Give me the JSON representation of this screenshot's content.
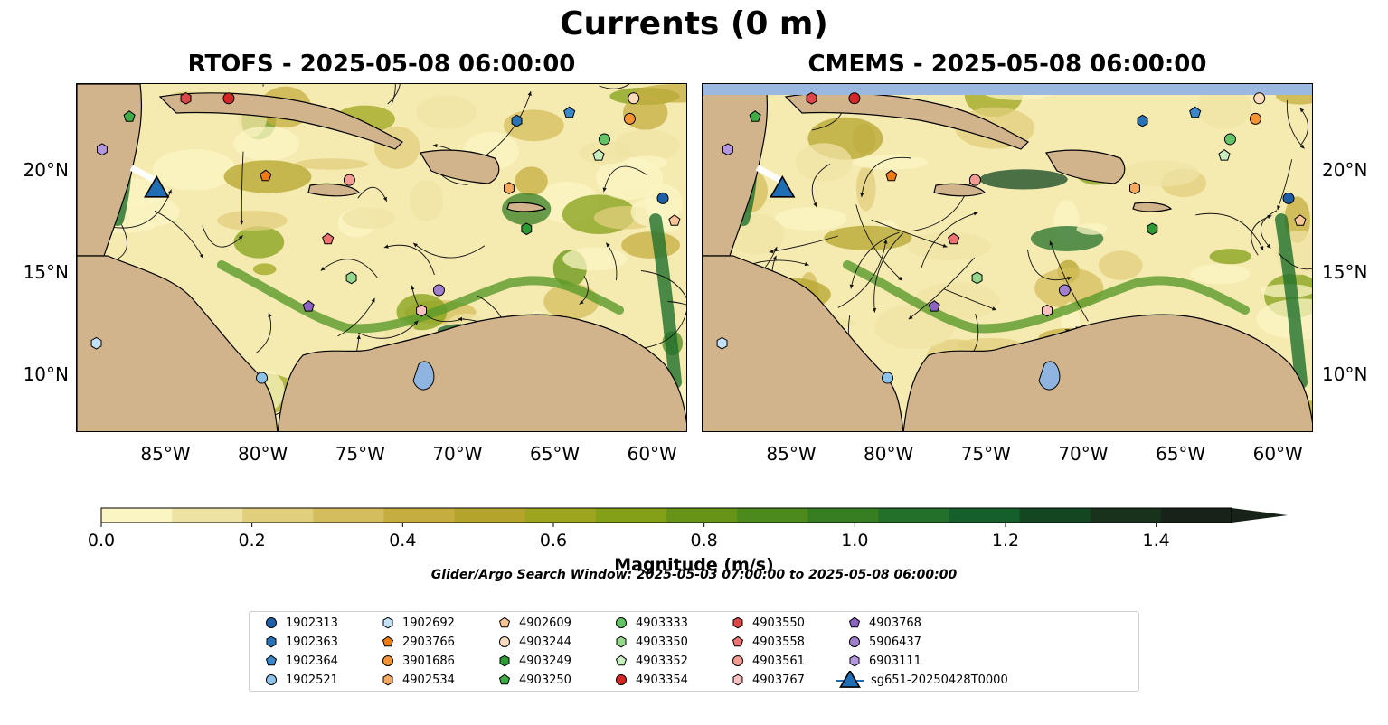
{
  "title": "Currents (0 m)",
  "panels": [
    {
      "title": "RTOFS - 2025-05-08 06:00:00"
    },
    {
      "title": "CMEMS - 2025-05-08 06:00:00"
    }
  ],
  "axes": {
    "lon_ticks": [
      "85°W",
      "80°W",
      "75°W",
      "70°W",
      "65°W",
      "60°W"
    ],
    "lon_values": [
      -85,
      -80,
      -75,
      -70,
      -65,
      -60
    ],
    "lat_ticks": [
      "20°N",
      "15°N",
      "10°N"
    ],
    "lat_values": [
      20,
      15,
      10
    ],
    "lon_range": [
      -89.6,
      -58.2
    ],
    "lat_range": [
      7.2,
      24.3
    ]
  },
  "colorbar": {
    "label": "Magnitude (m/s)",
    "ticks": [
      "0.0",
      "0.2",
      "0.4",
      "0.6",
      "0.8",
      "1.0",
      "1.2",
      "1.4"
    ],
    "tick_values": [
      0,
      0.2,
      0.4,
      0.6,
      0.8,
      1.0,
      1.2,
      1.4
    ],
    "range": [
      0,
      1.5
    ],
    "extend": "max",
    "colors": [
      "#fbf5c4",
      "#efe3a4",
      "#e1cf7e",
      "#d4bd5c",
      "#c6ad40",
      "#b4a42c",
      "#9da51e",
      "#84a019",
      "#679416",
      "#4d8a1d",
      "#377e23",
      "#22702a",
      "#145f2a",
      "#124722",
      "#18321c",
      "#172218"
    ]
  },
  "search_window": "Glider/Argo Search Window: 2025-05-03 07:00:00 to 2025-05-08 06:00:00",
  "legend": [
    {
      "id": "1902313",
      "marker": "circle",
      "color": "#1f5fa8"
    },
    {
      "id": "1902363",
      "marker": "hexagon",
      "color": "#2872b8"
    },
    {
      "id": "1902364",
      "marker": "pentagon",
      "color": "#3a87c9"
    },
    {
      "id": "1902521",
      "marker": "circle",
      "color": "#8ec3ea"
    },
    {
      "id": "1902692",
      "marker": "hexagon",
      "color": "#c3e2f7"
    },
    {
      "id": "2903766",
      "marker": "pentagon",
      "color": "#ef7c12"
    },
    {
      "id": "3901686",
      "marker": "circle",
      "color": "#f59435"
    },
    {
      "id": "4902534",
      "marker": "hexagon",
      "color": "#f7a962"
    },
    {
      "id": "4902609",
      "marker": "pentagon",
      "color": "#f9c596"
    },
    {
      "id": "4903244",
      "marker": "circle",
      "color": "#fcdcbc"
    },
    {
      "id": "4903249",
      "marker": "hexagon",
      "color": "#2e9a35"
    },
    {
      "id": "4903250",
      "marker": "pentagon",
      "color": "#3fac48"
    },
    {
      "id": "4903333",
      "marker": "circle",
      "color": "#63c365"
    },
    {
      "id": "4903350",
      "marker": "hexagon",
      "color": "#95d88d"
    },
    {
      "id": "4903352",
      "marker": "pentagon",
      "color": "#c9efc1"
    },
    {
      "id": "4903354",
      "marker": "circle",
      "color": "#d42727"
    },
    {
      "id": "4903550",
      "marker": "hexagon",
      "color": "#dd4646"
    },
    {
      "id": "4903558",
      "marker": "pentagon",
      "color": "#ed7373"
    },
    {
      "id": "4903561",
      "marker": "circle",
      "color": "#f59c94"
    },
    {
      "id": "4903767",
      "marker": "hexagon",
      "color": "#f9c2c0"
    },
    {
      "id": "4903768",
      "marker": "pentagon",
      "color": "#8a63c0"
    },
    {
      "id": "5906437",
      "marker": "circle",
      "color": "#a07fcd"
    },
    {
      "id": "6903111",
      "marker": "hexagon",
      "color": "#b597df"
    },
    {
      "id": "sg651-20250428T0000",
      "marker": "triangle",
      "color": "#1f6eb4"
    }
  ],
  "platform_positions": [
    {
      "id": "1902313",
      "lon": -59.5,
      "lat": 18.7
    },
    {
      "id": "1902363",
      "lon": -67.0,
      "lat": 22.5
    },
    {
      "id": "1902364",
      "lon": -64.3,
      "lat": 22.9
    },
    {
      "id": "1902521",
      "lon": -80.1,
      "lat": 9.9
    },
    {
      "id": "1902692",
      "lon": -88.6,
      "lat": 11.6
    },
    {
      "id": "2903766",
      "lon": -79.9,
      "lat": 19.8
    },
    {
      "id": "3901686",
      "lon": -61.2,
      "lat": 22.6
    },
    {
      "id": "4902534",
      "lon": -67.4,
      "lat": 19.2
    },
    {
      "id": "4902609",
      "lon": -58.9,
      "lat": 17.6
    },
    {
      "id": "4903244",
      "lon": -61.0,
      "lat": 23.6
    },
    {
      "id": "4903249",
      "lon": -66.5,
      "lat": 17.2
    },
    {
      "id": "4903250",
      "lon": -86.9,
      "lat": 22.7
    },
    {
      "id": "4903333",
      "lon": -62.5,
      "lat": 21.6
    },
    {
      "id": "4903350",
      "lon": -75.5,
      "lat": 14.8
    },
    {
      "id": "4903352",
      "lon": -62.8,
      "lat": 20.8
    },
    {
      "id": "4903354",
      "lon": -81.8,
      "lat": 23.6
    },
    {
      "id": "4903550",
      "lon": -84.0,
      "lat": 23.6
    },
    {
      "id": "4903558",
      "lon": -76.7,
      "lat": 16.7
    },
    {
      "id": "4903561",
      "lon": -75.6,
      "lat": 19.6
    },
    {
      "id": "4903767",
      "lon": -71.9,
      "lat": 13.2
    },
    {
      "id": "4903768",
      "lon": -77.7,
      "lat": 13.4
    },
    {
      "id": "5906437",
      "lon": -71.0,
      "lat": 14.2
    },
    {
      "id": "6903111",
      "lon": -88.3,
      "lat": 21.1
    },
    {
      "id": "sg651-20250428T0000",
      "lon": -85.5,
      "lat": 19.1
    }
  ]
}
